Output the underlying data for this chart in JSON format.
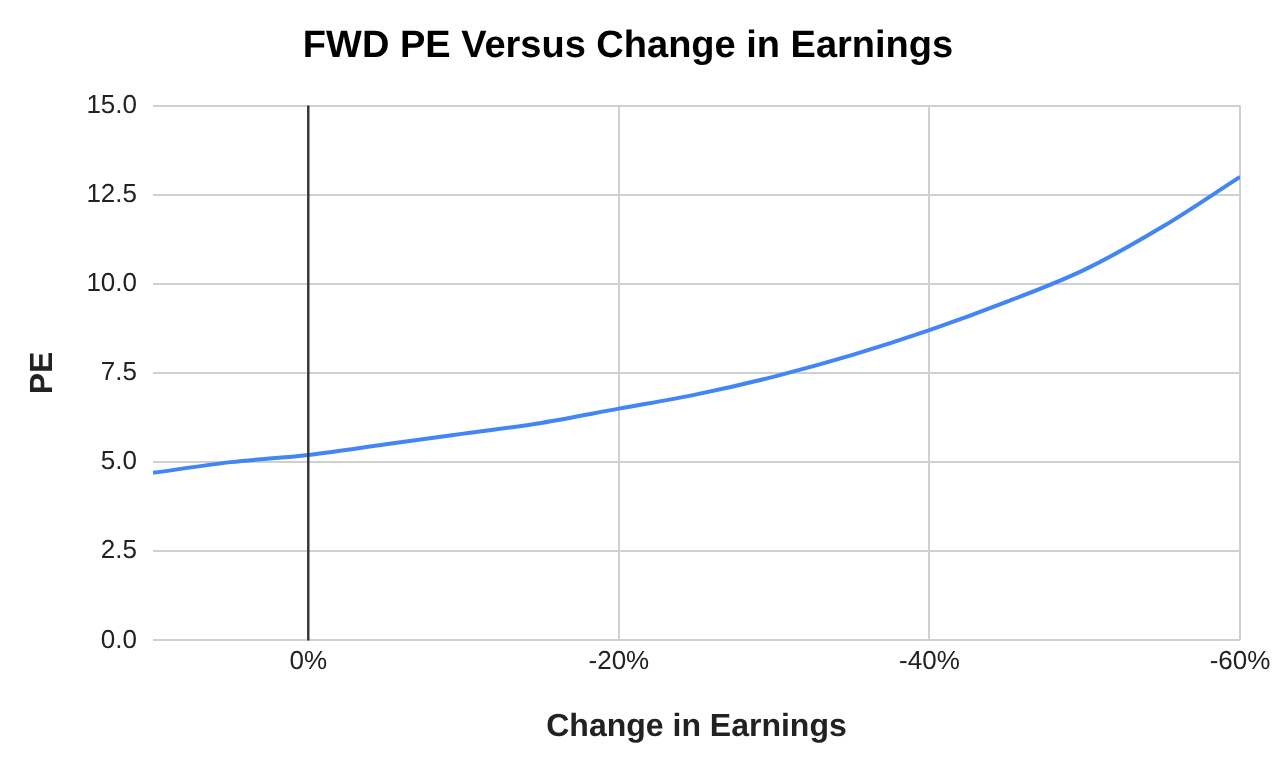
{
  "chart_data": {
    "type": "line",
    "title": "FWD PE Versus Change in Earnings",
    "xlabel": "Change in Earnings",
    "ylabel": "PE",
    "x": [
      10,
      5,
      0,
      -5,
      -10,
      -15,
      -20,
      -25,
      -30,
      -35,
      -40,
      -45,
      -50,
      -55,
      -60
    ],
    "series": [
      {
        "color": "#4285f4",
        "values": [
          4.7,
          5.0,
          5.2,
          5.5,
          5.8,
          6.1,
          6.5,
          6.9,
          7.4,
          8.0,
          8.7,
          9.5,
          10.4,
          11.6,
          13.0
        ]
      }
    ],
    "xlim": [
      10,
      -60
    ],
    "xticks": [
      {
        "value": 0,
        "label": "0%"
      },
      {
        "value": -20,
        "label": "-20%"
      },
      {
        "value": -40,
        "label": "-40%"
      },
      {
        "value": -60,
        "label": "-60%"
      }
    ],
    "ylim": [
      0,
      15
    ],
    "yticks": [
      {
        "value": 0,
        "label": "0.0"
      },
      {
        "value": 2.5,
        "label": "2.5"
      },
      {
        "value": 5,
        "label": "5.0"
      },
      {
        "value": 7.5,
        "label": "7.5"
      },
      {
        "value": 10,
        "label": "10.0"
      },
      {
        "value": 12.5,
        "label": "12.5"
      },
      {
        "value": 15,
        "label": "15.0"
      }
    ],
    "ref_lines": [
      {
        "axis": "x",
        "value": 0,
        "color": "#333333"
      }
    ],
    "grid": true,
    "legend": false,
    "marker": "none",
    "line_style": "solid"
  }
}
